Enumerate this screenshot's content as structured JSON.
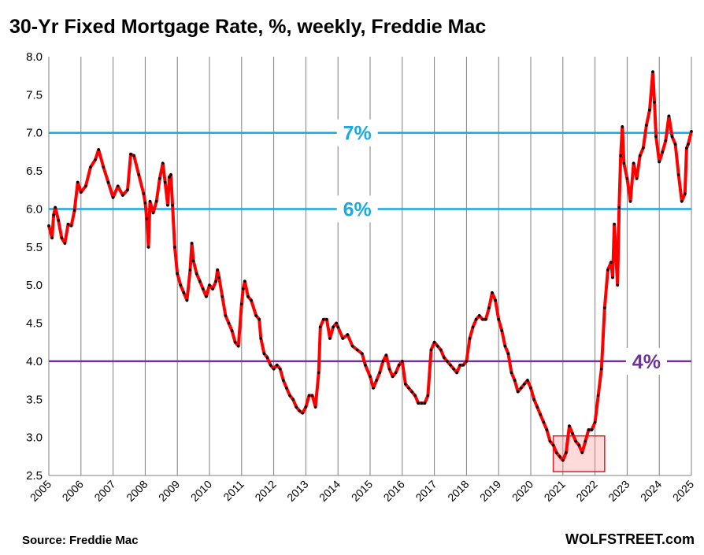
{
  "chart_data": {
    "type": "line",
    "title": "30-Yr Fixed Mortgage Rate, %, weekly, Freddie Mac",
    "xlabel": "",
    "ylabel": "",
    "xlim": [
      2005,
      2025
    ],
    "ylim": [
      2.5,
      8.0
    ],
    "y_ticks": [
      "2.5",
      "3.0",
      "3.5",
      "4.0",
      "4.5",
      "5.0",
      "5.5",
      "6.0",
      "6.5",
      "7.0",
      "7.5",
      "8.0"
    ],
    "x_ticks": [
      "2005",
      "2006",
      "2007",
      "2008",
      "2009",
      "2010",
      "2011",
      "2012",
      "2013",
      "2014",
      "2015",
      "2016",
      "2017",
      "2018",
      "2019",
      "2020",
      "2021",
      "2022",
      "2023",
      "2024",
      "2025"
    ],
    "grid": "vertical",
    "reference_lines": [
      {
        "value": 7.0,
        "label": "7%",
        "color": "#1ba9e0",
        "label_x": 2014.6
      },
      {
        "value": 6.0,
        "label": "6%",
        "color": "#1ba9e0",
        "label_x": 2014.6
      },
      {
        "value": 4.0,
        "label": "4%",
        "color": "#7030a0",
        "label_x": 2023.6
      }
    ],
    "highlight_box": {
      "x": [
        2020.7,
        2022.3
      ],
      "y": [
        2.55,
        3.02
      ],
      "color": "#e02020"
    },
    "series": [
      {
        "color": "#ff0000",
        "marker_color": "#000000",
        "points": [
          [
            2005.0,
            5.78
          ],
          [
            2005.1,
            5.62
          ],
          [
            2005.15,
            5.92
          ],
          [
            2005.2,
            6.02
          ],
          [
            2005.3,
            5.85
          ],
          [
            2005.4,
            5.62
          ],
          [
            2005.5,
            5.55
          ],
          [
            2005.6,
            5.8
          ],
          [
            2005.7,
            5.78
          ],
          [
            2005.8,
            5.98
          ],
          [
            2005.9,
            6.35
          ],
          [
            2006.0,
            6.22
          ],
          [
            2006.15,
            6.3
          ],
          [
            2006.3,
            6.55
          ],
          [
            2006.45,
            6.65
          ],
          [
            2006.55,
            6.78
          ],
          [
            2006.7,
            6.55
          ],
          [
            2006.85,
            6.35
          ],
          [
            2007.0,
            6.15
          ],
          [
            2007.15,
            6.3
          ],
          [
            2007.3,
            6.18
          ],
          [
            2007.45,
            6.25
          ],
          [
            2007.55,
            6.72
          ],
          [
            2007.65,
            6.7
          ],
          [
            2007.8,
            6.45
          ],
          [
            2007.95,
            6.2
          ],
          [
            2008.0,
            6.08
          ],
          [
            2008.05,
            5.87
          ],
          [
            2008.1,
            5.5
          ],
          [
            2008.15,
            6.1
          ],
          [
            2008.25,
            5.95
          ],
          [
            2008.35,
            6.1
          ],
          [
            2008.45,
            6.4
          ],
          [
            2008.55,
            6.6
          ],
          [
            2008.62,
            6.35
          ],
          [
            2008.7,
            6.05
          ],
          [
            2008.75,
            6.42
          ],
          [
            2008.8,
            6.45
          ],
          [
            2008.85,
            6.05
          ],
          [
            2008.92,
            5.5
          ],
          [
            2009.0,
            5.15
          ],
          [
            2009.1,
            5.0
          ],
          [
            2009.2,
            4.9
          ],
          [
            2009.3,
            4.8
          ],
          [
            2009.4,
            5.2
          ],
          [
            2009.45,
            5.55
          ],
          [
            2009.5,
            5.32
          ],
          [
            2009.6,
            5.15
          ],
          [
            2009.7,
            5.05
          ],
          [
            2009.8,
            4.95
          ],
          [
            2009.9,
            4.85
          ],
          [
            2010.0,
            5.0
          ],
          [
            2010.1,
            4.95
          ],
          [
            2010.2,
            5.05
          ],
          [
            2010.25,
            5.2
          ],
          [
            2010.3,
            5.1
          ],
          [
            2010.4,
            4.85
          ],
          [
            2010.5,
            4.6
          ],
          [
            2010.6,
            4.5
          ],
          [
            2010.7,
            4.4
          ],
          [
            2010.8,
            4.25
          ],
          [
            2010.9,
            4.2
          ],
          [
            2011.0,
            4.75
          ],
          [
            2011.05,
            4.95
          ],
          [
            2011.1,
            5.05
          ],
          [
            2011.2,
            4.85
          ],
          [
            2011.3,
            4.8
          ],
          [
            2011.45,
            4.6
          ],
          [
            2011.55,
            4.55
          ],
          [
            2011.6,
            4.3
          ],
          [
            2011.7,
            4.1
          ],
          [
            2011.8,
            4.05
          ],
          [
            2011.9,
            3.95
          ],
          [
            2012.0,
            3.9
          ],
          [
            2012.1,
            3.95
          ],
          [
            2012.2,
            3.9
          ],
          [
            2012.3,
            3.75
          ],
          [
            2012.4,
            3.65
          ],
          [
            2012.5,
            3.55
          ],
          [
            2012.6,
            3.5
          ],
          [
            2012.7,
            3.4
          ],
          [
            2012.8,
            3.35
          ],
          [
            2012.9,
            3.32
          ],
          [
            2013.0,
            3.4
          ],
          [
            2013.1,
            3.55
          ],
          [
            2013.2,
            3.55
          ],
          [
            2013.3,
            3.4
          ],
          [
            2013.4,
            3.85
          ],
          [
            2013.45,
            4.45
          ],
          [
            2013.55,
            4.55
          ],
          [
            2013.65,
            4.55
          ],
          [
            2013.75,
            4.3
          ],
          [
            2013.85,
            4.45
          ],
          [
            2013.95,
            4.5
          ],
          [
            2014.0,
            4.45
          ],
          [
            2014.15,
            4.3
          ],
          [
            2014.3,
            4.35
          ],
          [
            2014.45,
            4.2
          ],
          [
            2014.6,
            4.15
          ],
          [
            2014.75,
            4.1
          ],
          [
            2014.85,
            3.95
          ],
          [
            2015.0,
            3.8
          ],
          [
            2015.1,
            3.65
          ],
          [
            2015.2,
            3.75
          ],
          [
            2015.3,
            3.85
          ],
          [
            2015.4,
            4.0
          ],
          [
            2015.5,
            4.08
          ],
          [
            2015.6,
            3.9
          ],
          [
            2015.7,
            3.8
          ],
          [
            2015.8,
            3.85
          ],
          [
            2015.9,
            3.95
          ],
          [
            2016.0,
            4.0
          ],
          [
            2016.1,
            3.7
          ],
          [
            2016.2,
            3.65
          ],
          [
            2016.3,
            3.6
          ],
          [
            2016.4,
            3.55
          ],
          [
            2016.5,
            3.45
          ],
          [
            2016.6,
            3.45
          ],
          [
            2016.7,
            3.45
          ],
          [
            2016.8,
            3.55
          ],
          [
            2016.9,
            4.15
          ],
          [
            2017.0,
            4.25
          ],
          [
            2017.1,
            4.2
          ],
          [
            2017.2,
            4.15
          ],
          [
            2017.3,
            4.05
          ],
          [
            2017.4,
            4.0
          ],
          [
            2017.5,
            3.95
          ],
          [
            2017.6,
            3.9
          ],
          [
            2017.7,
            3.85
          ],
          [
            2017.8,
            3.95
          ],
          [
            2017.9,
            3.95
          ],
          [
            2018.0,
            4.0
          ],
          [
            2018.1,
            4.3
          ],
          [
            2018.2,
            4.45
          ],
          [
            2018.3,
            4.55
          ],
          [
            2018.4,
            4.6
          ],
          [
            2018.5,
            4.55
          ],
          [
            2018.6,
            4.55
          ],
          [
            2018.7,
            4.7
          ],
          [
            2018.8,
            4.9
          ],
          [
            2018.9,
            4.8
          ],
          [
            2019.0,
            4.55
          ],
          [
            2019.1,
            4.4
          ],
          [
            2019.2,
            4.2
          ],
          [
            2019.3,
            4.1
          ],
          [
            2019.4,
            3.85
          ],
          [
            2019.5,
            3.75
          ],
          [
            2019.6,
            3.6
          ],
          [
            2019.7,
            3.65
          ],
          [
            2019.8,
            3.7
          ],
          [
            2019.9,
            3.75
          ],
          [
            2020.0,
            3.65
          ],
          [
            2020.1,
            3.5
          ],
          [
            2020.2,
            3.4
          ],
          [
            2020.3,
            3.3
          ],
          [
            2020.4,
            3.2
          ],
          [
            2020.5,
            3.1
          ],
          [
            2020.6,
            2.95
          ],
          [
            2020.7,
            2.9
          ],
          [
            2020.8,
            2.8
          ],
          [
            2020.9,
            2.75
          ],
          [
            2021.0,
            2.7
          ],
          [
            2021.1,
            2.8
          ],
          [
            2021.2,
            3.15
          ],
          [
            2021.3,
            3.05
          ],
          [
            2021.4,
            2.95
          ],
          [
            2021.5,
            2.9
          ],
          [
            2021.6,
            2.8
          ],
          [
            2021.7,
            2.95
          ],
          [
            2021.8,
            3.1
          ],
          [
            2021.9,
            3.1
          ],
          [
            2022.0,
            3.2
          ],
          [
            2022.1,
            3.55
          ],
          [
            2022.2,
            3.9
          ],
          [
            2022.3,
            4.7
          ],
          [
            2022.4,
            5.2
          ],
          [
            2022.5,
            5.3
          ],
          [
            2022.55,
            5.1
          ],
          [
            2022.6,
            5.8
          ],
          [
            2022.7,
            5.0
          ],
          [
            2022.75,
            6.02
          ],
          [
            2022.8,
            6.7
          ],
          [
            2022.85,
            7.08
          ],
          [
            2022.9,
            6.6
          ],
          [
            2023.0,
            6.4
          ],
          [
            2023.1,
            6.1
          ],
          [
            2023.2,
            6.6
          ],
          [
            2023.3,
            6.4
          ],
          [
            2023.4,
            6.7
          ],
          [
            2023.5,
            6.8
          ],
          [
            2023.6,
            7.1
          ],
          [
            2023.7,
            7.3
          ],
          [
            2023.8,
            7.8
          ],
          [
            2023.85,
            7.4
          ],
          [
            2023.9,
            6.95
          ],
          [
            2024.0,
            6.62
          ],
          [
            2024.1,
            6.75
          ],
          [
            2024.2,
            6.9
          ],
          [
            2024.3,
            7.22
          ],
          [
            2024.4,
            6.95
          ],
          [
            2024.5,
            6.85
          ],
          [
            2024.6,
            6.45
          ],
          [
            2024.7,
            6.1
          ],
          [
            2024.8,
            6.2
          ],
          [
            2024.85,
            6.8
          ],
          [
            2024.9,
            6.85
          ],
          [
            2025.0,
            7.02
          ]
        ]
      }
    ]
  },
  "footer": {
    "source": "Source: Freddie Mac",
    "brand": "WOLFSTREET.com"
  }
}
